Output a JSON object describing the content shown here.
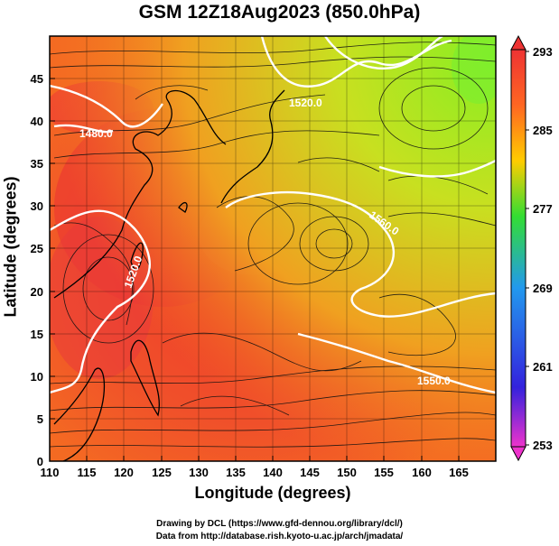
{
  "title": "GSM 12Z18Aug2023 (850.0hPa)",
  "axes": {
    "xlabel": "Longitude (degrees)",
    "ylabel": "Latitude  (degrees)",
    "x_ticks": [
      "110",
      "115",
      "120",
      "125",
      "130",
      "135",
      "140",
      "145",
      "150",
      "155",
      "160",
      "165"
    ],
    "y_ticks": [
      "0",
      "5",
      "10",
      "15",
      "20",
      "25",
      "30",
      "35",
      "40",
      "45"
    ],
    "xlim": [
      110,
      170
    ],
    "ylim": [
      0,
      50
    ]
  },
  "colorbar": {
    "ticks": [
      "293",
      "285",
      "277",
      "269",
      "261",
      "253"
    ],
    "range": [
      253,
      293
    ],
    "colors": [
      "#ee33cc",
      "#3322dd",
      "#2299ee",
      "#33dd33",
      "#ffcc00",
      "#ff6622",
      "#ee3333"
    ]
  },
  "contours": [
    {
      "label": "1520.0"
    },
    {
      "label": "1480.0"
    },
    {
      "label": "1560.0"
    },
    {
      "label": "1520.0"
    },
    {
      "label": "1550.0"
    }
  ],
  "credits": {
    "line1": "Drawing by DCL (https://www.gfd-dennou.org/library/dcl/)",
    "line2": "Data from http://database.rish.kyoto-u.ac.jp/arch/jmadata/"
  }
}
